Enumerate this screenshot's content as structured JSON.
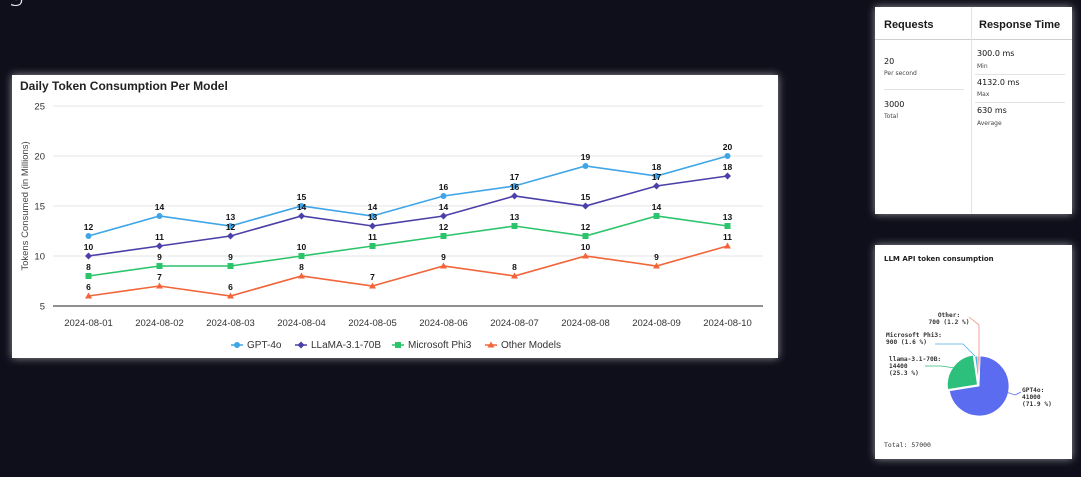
{
  "page": {
    "heading_partial": "g                  g"
  },
  "chart_data": [
    {
      "type": "line",
      "title": "Daily Token Consumption Per Model",
      "xlabel": "",
      "ylabel": "Tokens Consumed (in Millions)",
      "ylim": [
        5,
        25
      ],
      "yticks": [
        "5",
        "10",
        "15",
        "20",
        "25"
      ],
      "grid": true,
      "legend": "bottom",
      "categories": [
        "2024-08-01",
        "2024-08-02",
        "2024-08-03",
        "2024-08-04",
        "2024-08-05",
        "2024-08-06",
        "2024-08-07",
        "2024-08-08",
        "2024-08-09",
        "2024-08-10"
      ],
      "series": [
        {
          "name": "GPT-4o",
          "color": "#3ea6e8",
          "marker": "circle",
          "values": [
            12,
            14,
            13,
            15,
            14,
            16,
            17,
            19,
            18,
            20
          ]
        },
        {
          "name": "LLaMA-3.1-70B",
          "color": "#4b3fa8",
          "marker": "diamond",
          "values": [
            10,
            11,
            12,
            14,
            13,
            14,
            16,
            15,
            17,
            18
          ]
        },
        {
          "name": "Microsoft Phi3",
          "color": "#2cc46a",
          "marker": "square",
          "values": [
            8,
            9,
            9,
            10,
            11,
            12,
            13,
            12,
            14,
            13
          ]
        },
        {
          "name": "Other Models",
          "color": "#f2653a",
          "marker": "triangle",
          "values": [
            6,
            7,
            6,
            8,
            7,
            9,
            8,
            10,
            9,
            11
          ]
        }
      ]
    },
    {
      "type": "pie",
      "title": "LLM API token consumption",
      "total_label": "Total: 57000",
      "slices": [
        {
          "name": "GPT4o",
          "value": 41000,
          "pct": "(71.9 %)",
          "color": "#5b6cf0"
        },
        {
          "name": "llama-3.1-70B",
          "value": 14400,
          "pct": "(25.3 %)",
          "color": "#2dbf7c"
        },
        {
          "name": "Microsoft Phi3",
          "value": 900,
          "pct": "(1.6 %)",
          "color": "#4fb0e8"
        },
        {
          "name": "Other",
          "value": 700,
          "pct": "(1.2 %)",
          "color": "#f28a7a"
        }
      ],
      "labels": {
        "gpt": [
          "GPT4o:",
          "41000",
          "(71.9 %)"
        ],
        "llama": [
          "llama-3.1-70B:",
          "14400",
          "(25.3 %)"
        ],
        "phi": [
          "Microsoft Phi3:",
          "900 (1.6 %)"
        ],
        "other": [
          "Other:",
          "700 (1.2 %)"
        ]
      }
    }
  ],
  "stats": {
    "requests_header": "Requests",
    "response_header": "Response Time",
    "requests": [
      {
        "value": "20",
        "label": "Per second"
      },
      {
        "value": "3000",
        "label": "Total"
      }
    ],
    "response": [
      {
        "value": "300.0 ms",
        "label": "Min"
      },
      {
        "value": "4132.0 ms",
        "label": "Max"
      },
      {
        "value": "630 ms",
        "label": "Average"
      }
    ]
  }
}
